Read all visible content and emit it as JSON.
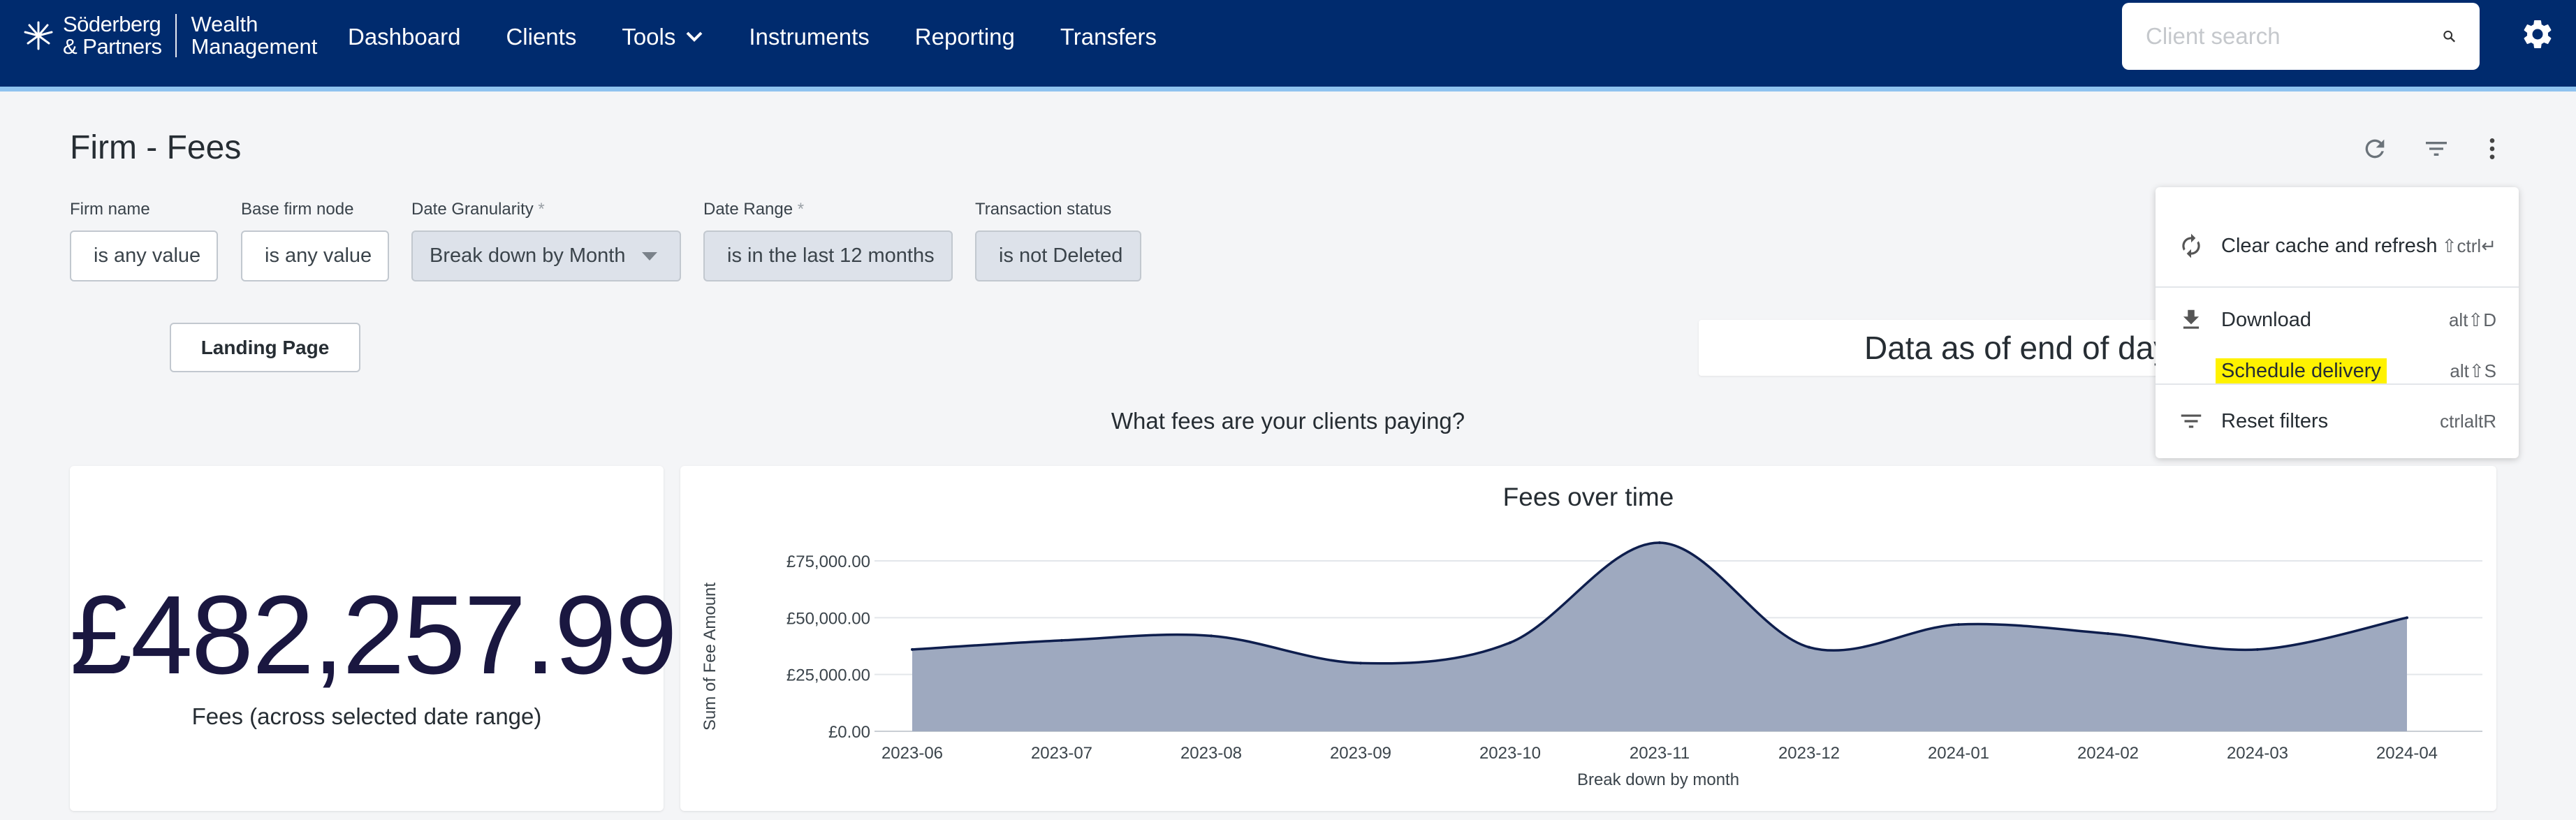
{
  "brand": {
    "name_line1": "Söderberg",
    "name_line2": "& Partners",
    "sub_line1": "Wealth",
    "sub_line2": "Management"
  },
  "nav": {
    "items": [
      "Dashboard",
      "Clients",
      "Tools",
      "Instruments",
      "Reporting",
      "Transfers"
    ]
  },
  "search": {
    "placeholder": "Client search"
  },
  "page": {
    "title": "Firm - Fees"
  },
  "filters": [
    {
      "label": "Firm name",
      "required": "",
      "value": "is any value"
    },
    {
      "label": "Base firm node",
      "required": "",
      "value": "is any value"
    },
    {
      "label": "Date Granularity",
      "required": "*",
      "value": "Break down by Month"
    },
    {
      "label": "Date Range",
      "required": "*",
      "value": "is in the last 12 months"
    },
    {
      "label": "Transaction status",
      "required": "",
      "value": "is not Deleted"
    }
  ],
  "landing_button": "Landing Page",
  "data_as_of": "Data as of end of day",
  "section_question": "What fees are your clients paying?",
  "kpi": {
    "value": "£482,257.99",
    "label": "Fees (across selected date range)"
  },
  "menu": {
    "items": [
      {
        "label": "Clear cache and refresh",
        "shortcut": "⇧ctrl↵",
        "icon": "refresh-icon"
      },
      {
        "label": "Download",
        "shortcut": "alt⇧D",
        "icon": "download-icon"
      },
      {
        "label": "Schedule delivery",
        "shortcut": "alt⇧S",
        "icon": ""
      },
      {
        "label": "Reset filters",
        "shortcut": "ctrlaltR",
        "icon": "filter-icon"
      }
    ]
  },
  "colors": {
    "nav_bg": "#002b6e",
    "area_fill": "#9ea9bf",
    "area_line": "#0e1e4d",
    "highlight": "#fff200"
  },
  "chart_data": {
    "type": "area",
    "title": "Fees over time",
    "xlabel": "Break down by month",
    "ylabel": "Sum of Fee Amount",
    "x": [
      "2023-06",
      "2023-07",
      "2023-08",
      "2023-09",
      "2023-10",
      "2023-11",
      "2023-12",
      "2024-01",
      "2024-02",
      "2024-03",
      "2024-04"
    ],
    "values": [
      36000,
      40000,
      42000,
      30000,
      39000,
      83000,
      37000,
      47000,
      43000,
      36000,
      50000
    ],
    "yticks": [
      "£0.00",
      "£25,000.00",
      "£50,000.00",
      "£75,000.00"
    ],
    "ylim": [
      0,
      75000
    ],
    "grid": true
  }
}
